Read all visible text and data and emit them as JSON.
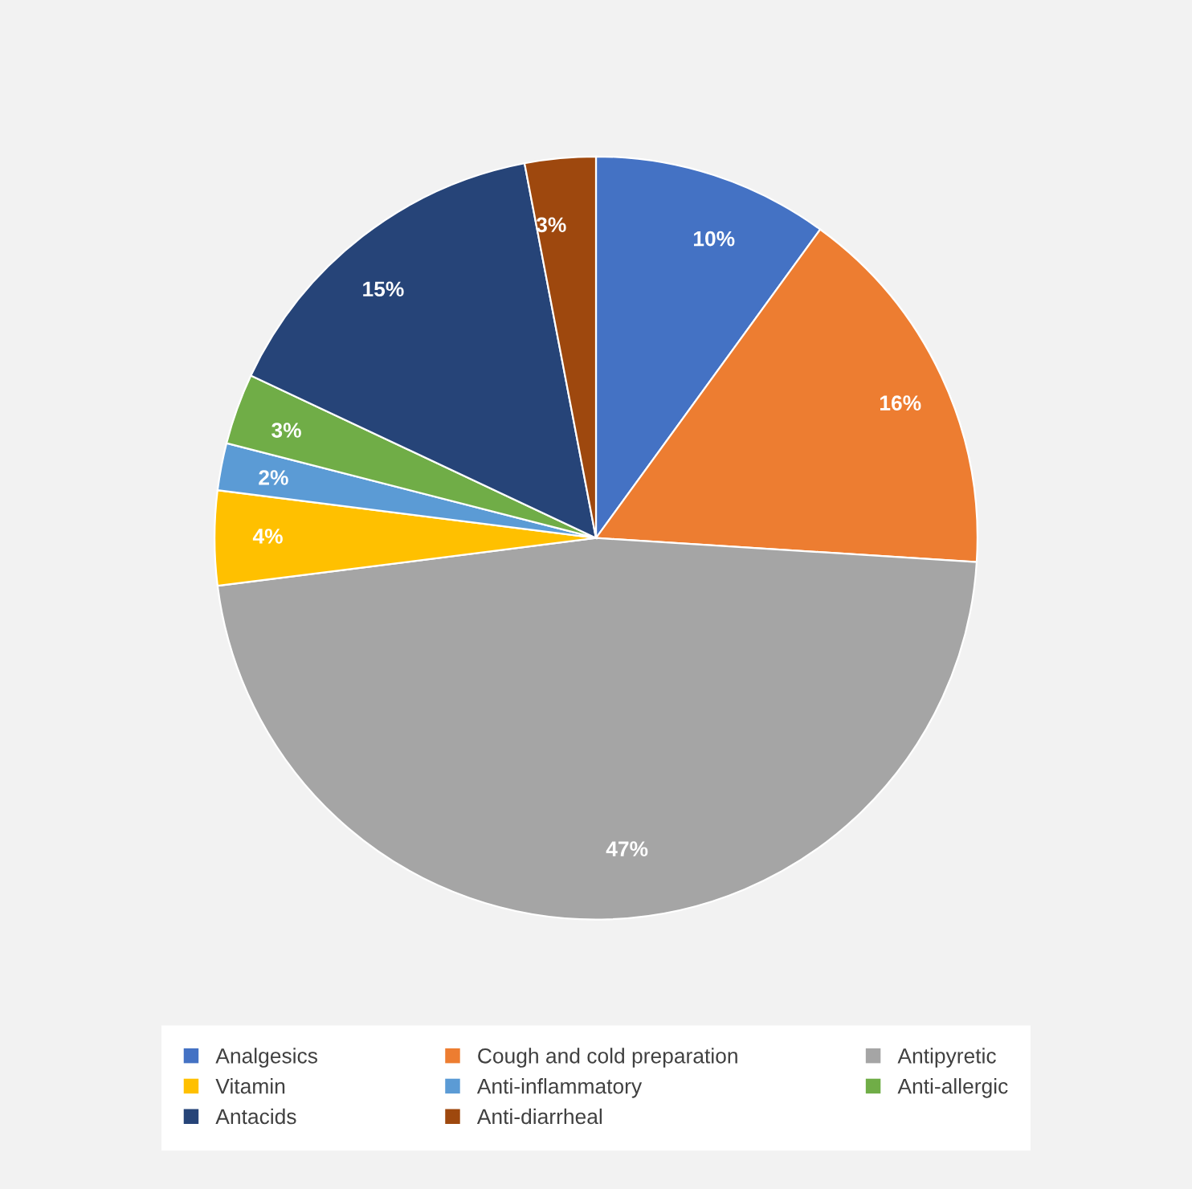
{
  "chart_data": {
    "type": "pie",
    "categories": [
      "Analgesics",
      "Cough and cold preparation",
      "Antipyretic",
      "Vitamin",
      "Anti-inflammatory",
      "Anti-allergic",
      "Antacids",
      "Anti-diarrheal"
    ],
    "values": [
      10,
      16,
      47,
      4,
      2,
      3,
      15,
      3
    ],
    "colors": [
      "#4472c4",
      "#ed7d31",
      "#a5a5a5",
      "#ffc000",
      "#5b9bd5",
      "#70ad47",
      "#264478",
      "#9e480e"
    ],
    "value_labels": [
      "10%",
      "16%",
      "47%",
      "4%",
      "2%",
      "3%",
      "15%",
      "3%"
    ],
    "legend": "bottom"
  }
}
